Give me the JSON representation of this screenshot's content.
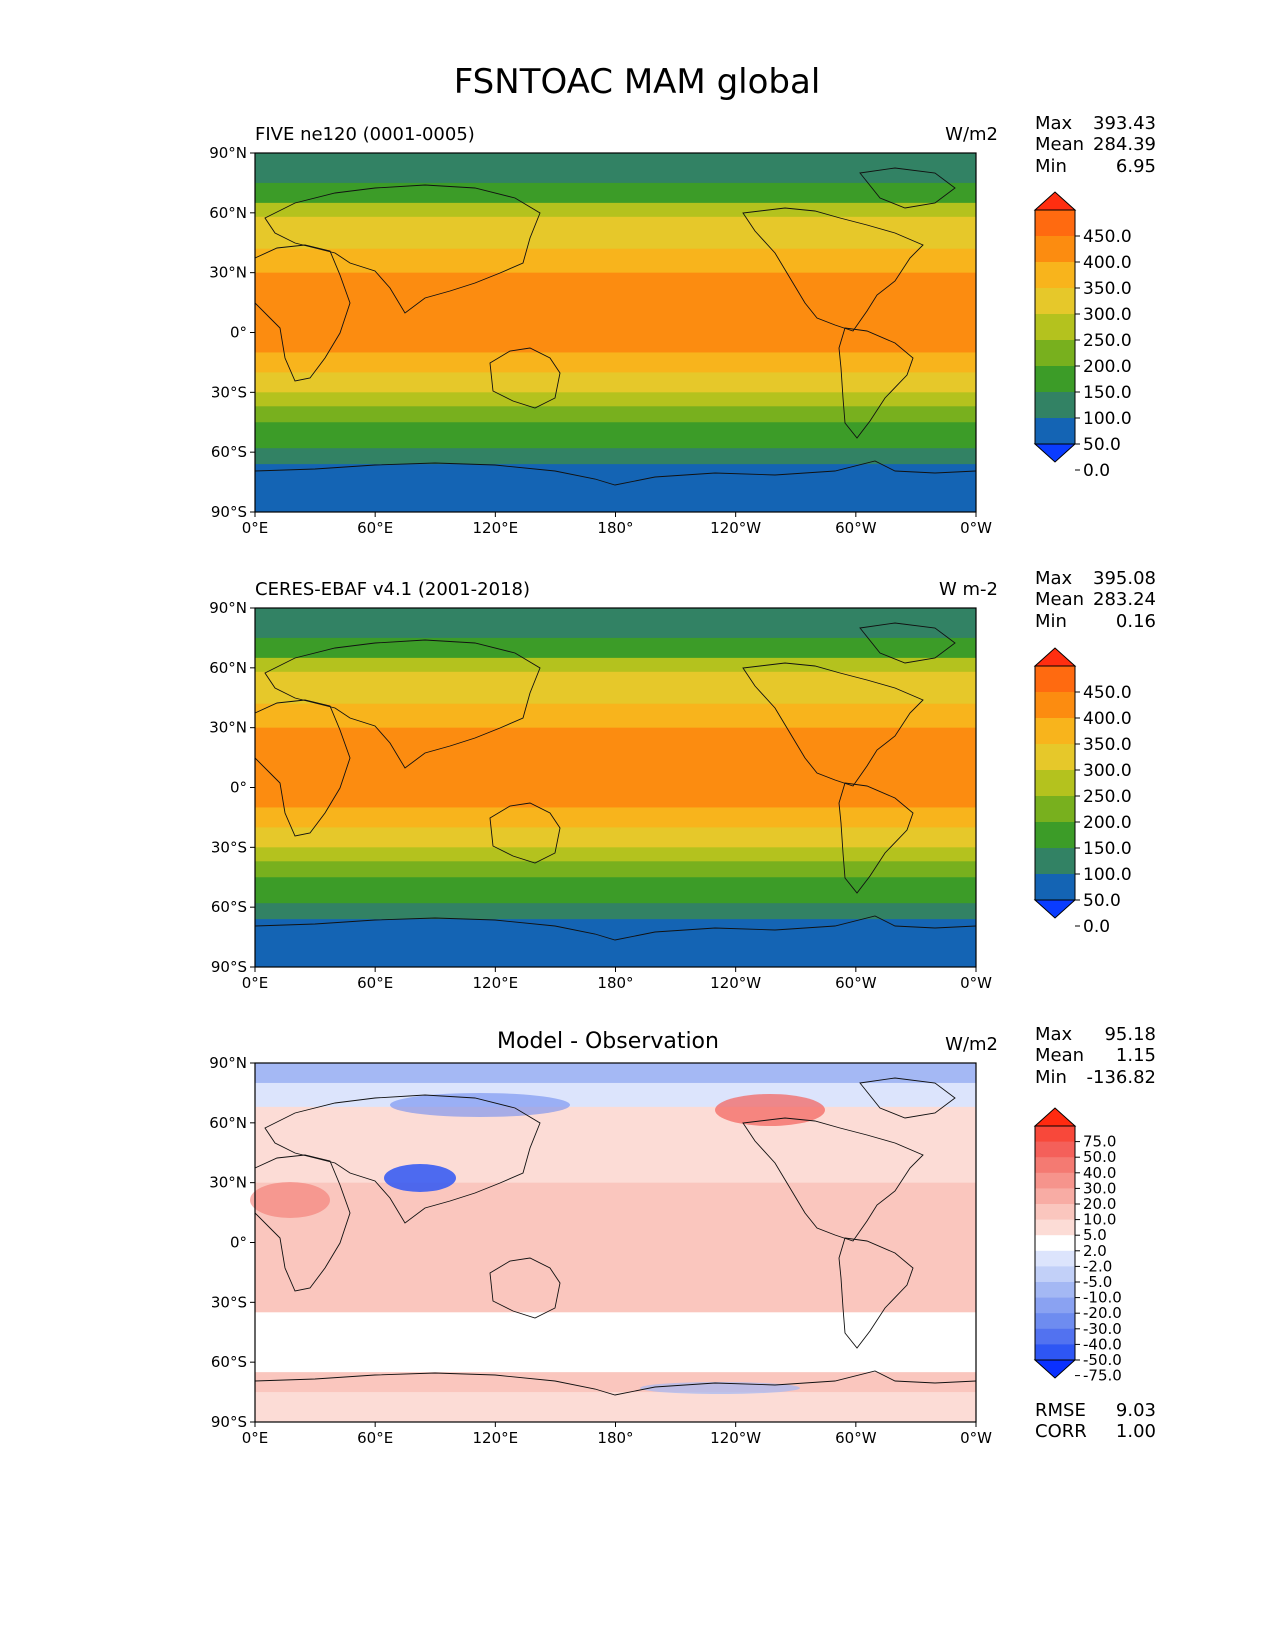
{
  "figure_title": "FSNTOAC MAM global",
  "chart_data": [
    {
      "type": "heatmap",
      "map_projection": "PlateCarree",
      "title_left": "FIVE ne120 (0001-0005)",
      "title_center": "",
      "units": "W/m2",
      "stats": {
        "labels": [
          "Max",
          "Mean",
          "Min"
        ],
        "values": [
          "393.43",
          "284.39",
          "6.95"
        ]
      },
      "x_ticks": [
        "0°E",
        "60°E",
        "120°E",
        "180°",
        "120°W",
        "60°W",
        "0°W"
      ],
      "y_ticks": [
        "90°N",
        "60°N",
        "30°N",
        "0°",
        "30°S",
        "60°S",
        "90°S"
      ],
      "xlim": [
        0,
        360
      ],
      "ylim": [
        -90,
        90
      ],
      "zonal_bands": [
        {
          "lat_range": [
            90,
            75
          ],
          "value": 90
        },
        {
          "lat_range": [
            75,
            65
          ],
          "value": 140
        },
        {
          "lat_range": [
            65,
            58
          ],
          "value": 210
        },
        {
          "lat_range": [
            58,
            42
          ],
          "value": 270
        },
        {
          "lat_range": [
            42,
            30
          ],
          "value": 320
        },
        {
          "lat_range": [
            30,
            -10
          ],
          "value": 370
        },
        {
          "lat_range": [
            -10,
            -20
          ],
          "value": 330
        },
        {
          "lat_range": [
            -20,
            -30
          ],
          "value": 290
        },
        {
          "lat_range": [
            -30,
            -37
          ],
          "value": 230
        },
        {
          "lat_range": [
            -37,
            -45
          ],
          "value": 190
        },
        {
          "lat_range": [
            -45,
            -52
          ],
          "value": 140
        },
        {
          "lat_range": [
            -52,
            -58
          ],
          "value": 110
        },
        {
          "lat_range": [
            -58,
            -66
          ],
          "value": 80
        },
        {
          "lat_range": [
            -66,
            -90
          ],
          "value": 40
        }
      ],
      "colorbar": {
        "levels": [
          "450.0",
          "400.0",
          "350.0",
          "300.0",
          "250.0",
          "200.0",
          "150.0",
          "100.0",
          "50.0",
          "0.0"
        ],
        "colors": [
          "#ff2e10",
          "#ff6a10",
          "#fc8c10",
          "#f8b41c",
          "#e6c82a",
          "#b4c21e",
          "#78b01e",
          "#3c9c28",
          "#328264",
          "#1464b4",
          "#0a3cff"
        ],
        "extend": "both"
      }
    },
    {
      "type": "heatmap",
      "map_projection": "PlateCarree",
      "title_left": "CERES-EBAF v4.1 (2001-2018)",
      "title_center": "",
      "units": "W m-2",
      "stats": {
        "labels": [
          "Max",
          "Mean",
          "Min"
        ],
        "values": [
          "395.08",
          "283.24",
          "0.16"
        ]
      },
      "x_ticks": [
        "0°E",
        "60°E",
        "120°E",
        "180°",
        "120°W",
        "60°W",
        "0°W"
      ],
      "y_ticks": [
        "90°N",
        "60°N",
        "30°N",
        "0°",
        "30°S",
        "60°S",
        "90°S"
      ],
      "xlim": [
        0,
        360
      ],
      "ylim": [
        -90,
        90
      ],
      "zonal_bands": [
        {
          "lat_range": [
            90,
            75
          ],
          "value": 90
        },
        {
          "lat_range": [
            75,
            65
          ],
          "value": 140
        },
        {
          "lat_range": [
            65,
            58
          ],
          "value": 210
        },
        {
          "lat_range": [
            58,
            42
          ],
          "value": 270
        },
        {
          "lat_range": [
            42,
            30
          ],
          "value": 320
        },
        {
          "lat_range": [
            30,
            -10
          ],
          "value": 370
        },
        {
          "lat_range": [
            -10,
            -20
          ],
          "value": 330
        },
        {
          "lat_range": [
            -20,
            -30
          ],
          "value": 290
        },
        {
          "lat_range": [
            -30,
            -37
          ],
          "value": 230
        },
        {
          "lat_range": [
            -37,
            -45
          ],
          "value": 190
        },
        {
          "lat_range": [
            -45,
            -52
          ],
          "value": 140
        },
        {
          "lat_range": [
            -52,
            -58
          ],
          "value": 110
        },
        {
          "lat_range": [
            -58,
            -66
          ],
          "value": 80
        },
        {
          "lat_range": [
            -66,
            -90
          ],
          "value": 40
        }
      ],
      "colorbar": {
        "levels": [
          "450.0",
          "400.0",
          "350.0",
          "300.0",
          "250.0",
          "200.0",
          "150.0",
          "100.0",
          "50.0",
          "0.0"
        ],
        "colors": [
          "#ff2e10",
          "#ff6a10",
          "#fc8c10",
          "#f8b41c",
          "#e6c82a",
          "#b4c21e",
          "#78b01e",
          "#3c9c28",
          "#328264",
          "#1464b4",
          "#0a3cff"
        ],
        "extend": "both"
      }
    },
    {
      "type": "heatmap",
      "map_projection": "PlateCarree",
      "title_left": "",
      "title_center": "Model - Observation",
      "units": "W/m2",
      "stats": {
        "labels": [
          "Max",
          "Mean",
          "Min"
        ],
        "values": [
          "95.18",
          "1.15",
          "-136.82"
        ]
      },
      "extra_stats": {
        "labels": [
          "RMSE",
          "CORR"
        ],
        "values": [
          "9.03",
          "1.00"
        ]
      },
      "x_ticks": [
        "0°E",
        "60°E",
        "120°E",
        "180°",
        "120°W",
        "60°W",
        "0°W"
      ],
      "y_ticks": [
        "90°N",
        "60°N",
        "30°N",
        "0°",
        "30°S",
        "60°S",
        "90°S"
      ],
      "xlim": [
        0,
        360
      ],
      "ylim": [
        -90,
        90
      ],
      "zonal_bands": [
        {
          "lat_range": [
            90,
            80
          ],
          "value": -15
        },
        {
          "lat_range": [
            80,
            68
          ],
          "value": -5
        },
        {
          "lat_range": [
            68,
            30
          ],
          "value": 3
        },
        {
          "lat_range": [
            30,
            -35
          ],
          "value": 5
        },
        {
          "lat_range": [
            -35,
            -65
          ],
          "value": 0
        },
        {
          "lat_range": [
            -65,
            -75
          ],
          "value": 6
        },
        {
          "lat_range": [
            -75,
            -90
          ],
          "value": 3
        }
      ],
      "colorbar": {
        "levels": [
          "75.0",
          "50.0",
          "40.0",
          "30.0",
          "20.0",
          "10.0",
          "5.0",
          "2.0",
          "-2.0",
          "-5.0",
          "-10.0",
          "-20.0",
          "-30.0",
          "-40.0",
          "-50.0",
          "-75.0"
        ],
        "colors": [
          "#ff2a10",
          "#f8483a",
          "#f4605a",
          "#f47a72",
          "#f6948c",
          "#f8aca4",
          "#fac6be",
          "#fcdcd6",
          "#ffffff",
          "#dce4fc",
          "#c2d0f8",
          "#a4b8f4",
          "#8aa2f2",
          "#6e8cf0",
          "#5272f0",
          "#2e56f4",
          "#0a30ff"
        ],
        "extend": "both"
      }
    }
  ]
}
